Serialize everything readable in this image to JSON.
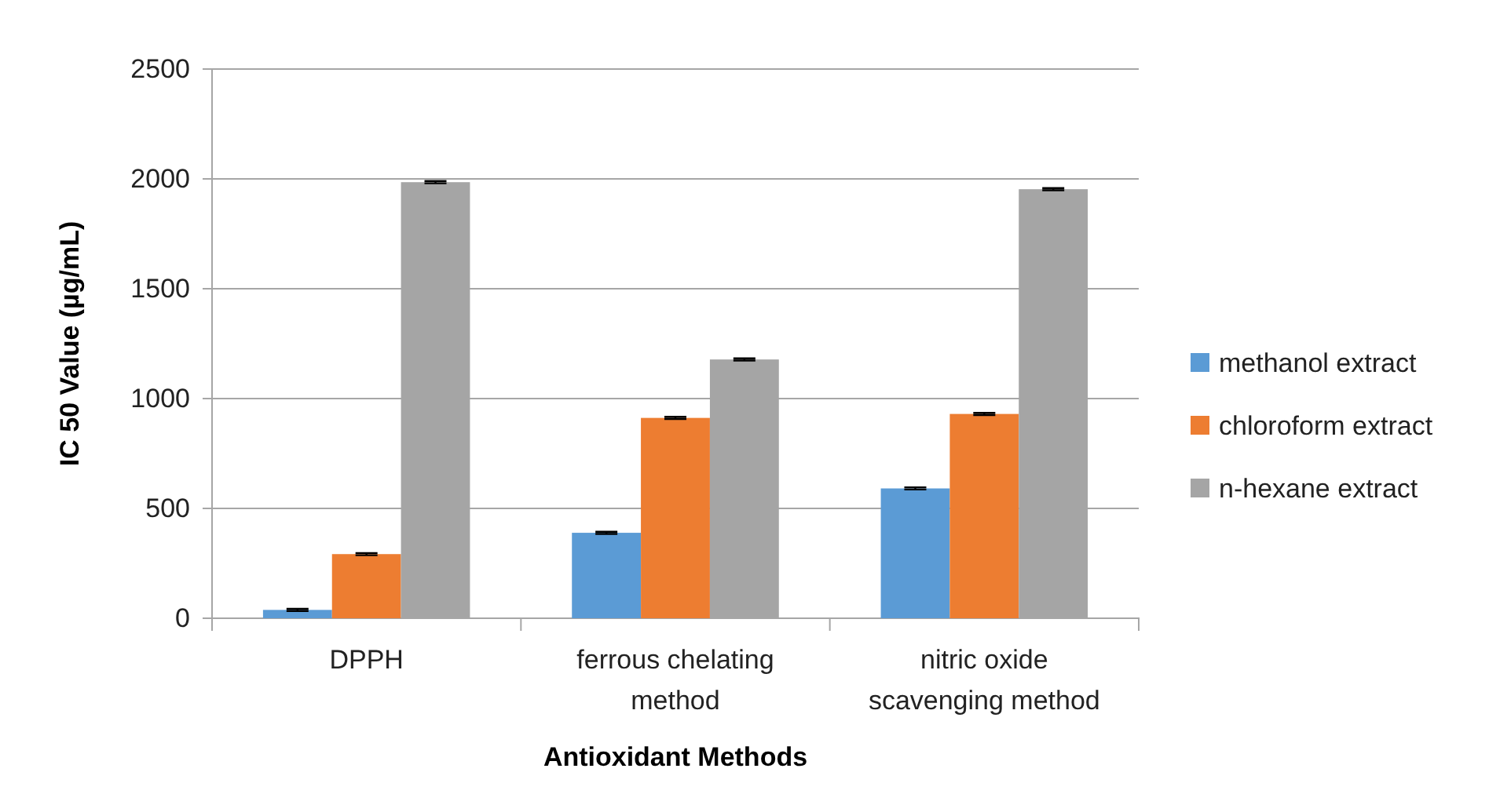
{
  "chart_data": {
    "type": "bar",
    "xlabel": "Antioxidant Methods",
    "ylabel": "IC 50 Value (µg/mL)",
    "categories": [
      "DPPH",
      "ferrous chelating method",
      "nitric oxide scavenging method"
    ],
    "series": [
      {
        "name": "methanol extract",
        "color": "#5b9bd5",
        "values": [
          38,
          389,
          591
        ],
        "errors": [
          5,
          5,
          5
        ]
      },
      {
        "name": "chloroform extract",
        "color": "#ed7d31",
        "values": [
          292,
          912,
          930
        ],
        "errors": [
          5,
          5,
          5
        ]
      },
      {
        "name": "n-hexane extract",
        "color": "#a5a5a5",
        "values": [
          1985,
          1178,
          1953
        ],
        "errors": [
          5,
          5,
          5
        ]
      }
    ],
    "ylim": [
      0,
      2500
    ],
    "yticks": [
      0,
      500,
      1000,
      1500,
      2000,
      2500
    ],
    "grid": "y",
    "legend": "right"
  }
}
